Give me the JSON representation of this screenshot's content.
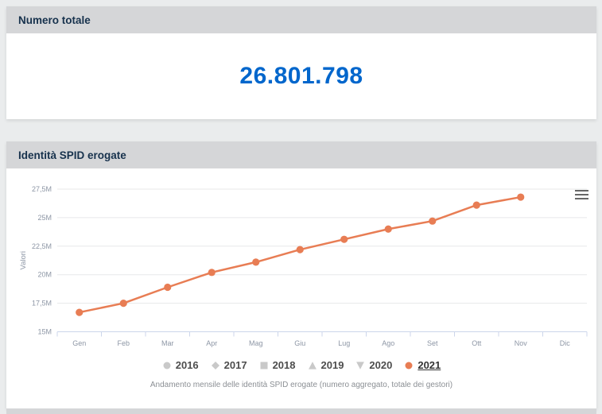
{
  "cards": {
    "total": {
      "title": "Numero totale",
      "value": "26.801.798"
    },
    "chart": {
      "title": "Identità SPID erogate",
      "caption": "Andamento mensile delle identità SPID erogate (numero aggregato, totale dei gestori)"
    }
  },
  "chart_data": {
    "type": "line",
    "title": "",
    "xlabel": "",
    "ylabel": "Valori",
    "categories": [
      "Gen",
      "Feb",
      "Mar",
      "Apr",
      "Mag",
      "Giu",
      "Lug",
      "Ago",
      "Set",
      "Ott",
      "Nov",
      "Dic"
    ],
    "y_tick_labels": [
      "15M",
      "17,5M",
      "20M",
      "22,5M",
      "25M",
      "27,5M"
    ],
    "y_tick_values_millions": [
      15,
      17.5,
      20,
      22.5,
      25,
      27.5
    ],
    "ylim_millions": [
      15,
      27.5
    ],
    "unit": "M",
    "grid": true,
    "legend_position": "bottom",
    "series": [
      {
        "name": "2016",
        "marker": "circle",
        "visible": false,
        "values_millions": []
      },
      {
        "name": "2017",
        "marker": "diamond",
        "visible": false,
        "values_millions": []
      },
      {
        "name": "2018",
        "marker": "square",
        "visible": false,
        "values_millions": []
      },
      {
        "name": "2019",
        "marker": "triangle-up",
        "visible": false,
        "values_millions": []
      },
      {
        "name": "2020",
        "marker": "triangle-down",
        "visible": false,
        "values_millions": []
      },
      {
        "name": "2021",
        "marker": "circle",
        "visible": true,
        "color": "#e87d54",
        "values_millions": [
          16.7,
          17.5,
          18.9,
          20.2,
          21.1,
          22.2,
          23.1,
          24.0,
          24.7,
          26.1,
          26.8
        ]
      }
    ]
  },
  "icons": {
    "chart_context_menu": "hamburger-menu-icon"
  },
  "colors": {
    "accent_blue": "#0066cc",
    "series_orange": "#e87d54",
    "inactive_marker_gray": "#c9c9c9",
    "header_bg": "#d5d6d8",
    "header_text": "#17324d",
    "axis_line": "#ccd6eb",
    "grid_line": "#e7e8ea",
    "axis_label": "#8d96a5"
  }
}
